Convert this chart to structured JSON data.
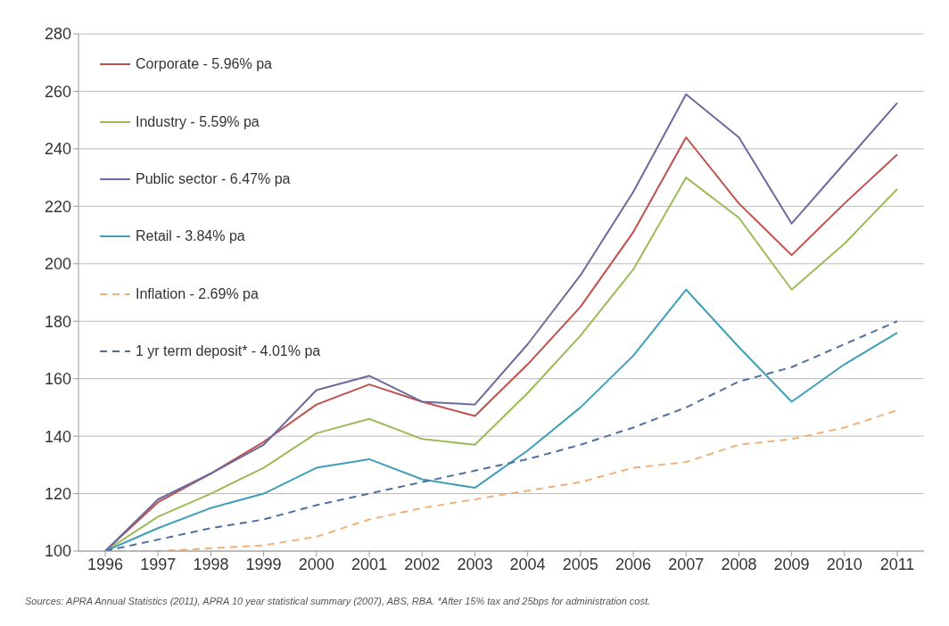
{
  "chart_data": {
    "type": "line",
    "categories": [
      "1996",
      "1997",
      "1998",
      "1999",
      "2000",
      "2001",
      "2002",
      "2003",
      "2004",
      "2005",
      "2006",
      "2007",
      "2008",
      "2009",
      "2010",
      "2011"
    ],
    "series": [
      {
        "name": "Corporate - 5.96% pa",
        "color": "#c0504d",
        "line_style": "solid",
        "values": [
          100,
          117,
          127,
          138,
          151,
          158,
          152,
          147,
          165,
          185,
          211,
          244,
          221,
          203,
          221,
          238
        ]
      },
      {
        "name": "Industry - 5.59% pa",
        "color": "#9bbb59",
        "line_style": "solid",
        "values": [
          100,
          112,
          120,
          129,
          141,
          146,
          139,
          137,
          155,
          175,
          198,
          230,
          216,
          191,
          207,
          226
        ]
      },
      {
        "name": "Public sector - 6.47% pa",
        "color": "#6c6a9c",
        "line_style": "solid",
        "values": [
          100,
          118,
          127,
          137,
          156,
          161,
          152,
          151,
          172,
          196,
          225,
          259,
          244,
          214,
          235,
          256
        ]
      },
      {
        "name": "Retail - 3.84% pa",
        "color": "#3f9fb8",
        "line_style": "solid",
        "values": [
          100,
          108,
          115,
          120,
          129,
          132,
          125,
          122,
          135,
          150,
          168,
          191,
          171,
          152,
          165,
          176
        ]
      },
      {
        "name": "Inflation - 2.69% pa",
        "color": "#f0b27a",
        "line_style": "dashed",
        "values": [
          100,
          100,
          101,
          102,
          105,
          111,
          115,
          118,
          121,
          124,
          129,
          131,
          137,
          139,
          143,
          149
        ]
      },
      {
        "name": "1 yr term deposit* - 4.01% pa",
        "color": "#4f6fa0",
        "line_style": "dashed",
        "values": [
          100,
          104,
          108,
          111,
          116,
          120,
          124,
          128,
          132,
          137,
          143,
          150,
          159,
          164,
          172,
          180
        ]
      }
    ],
    "ylim": [
      100,
      280
    ],
    "yticks": [
      100,
      120,
      140,
      160,
      180,
      200,
      220,
      240,
      260,
      280
    ],
    "grid": "y",
    "legend": "top left",
    "marker": "none",
    "annotations": [
      "Sources: APRA Annual Statistics (2011), APRA 10 year statistical summary (2007), ABS, RBA. *After 15% tax and 25bps for administration cost."
    ]
  }
}
